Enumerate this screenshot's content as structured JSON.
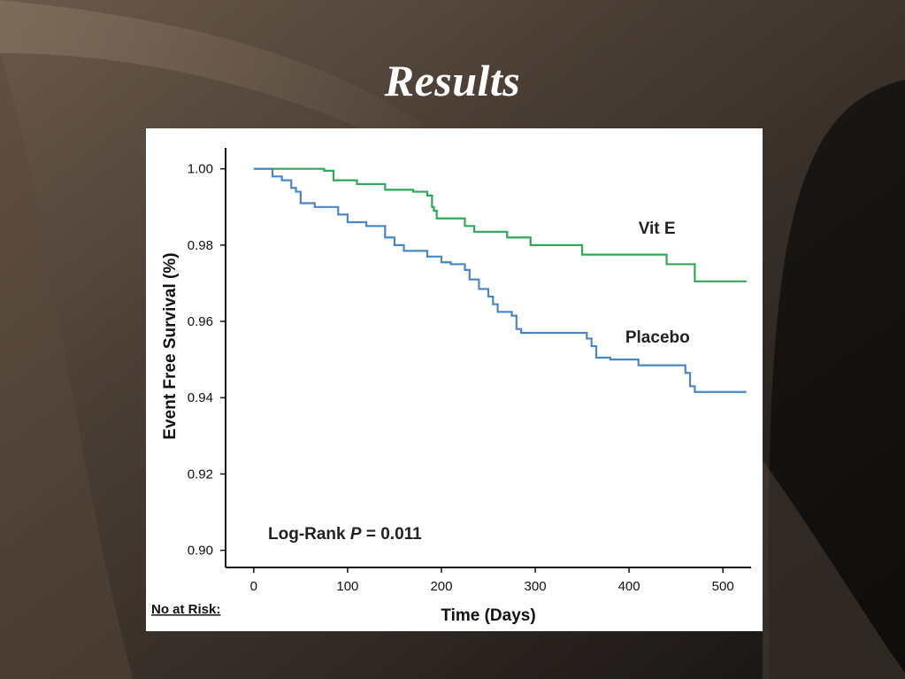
{
  "slide": {
    "title": "Results"
  },
  "colors": {
    "vit_e": "#2fa85a",
    "placebo": "#4a86c5",
    "axis": "#111111"
  },
  "chart_data": {
    "type": "line",
    "subtype": "kaplan-meier step",
    "xlabel": "Time (Days)",
    "ylabel": "Event Free Survival (%)",
    "xlim": [
      -30,
      530
    ],
    "ylim": [
      0.8955,
      1.0055
    ],
    "x_ticks": [
      0,
      100,
      200,
      300,
      400,
      500
    ],
    "x_tick_labels": [
      "0",
      "100",
      "200",
      "300",
      "400",
      "500"
    ],
    "y_ticks": [
      0.9,
      0.92,
      0.94,
      0.96,
      0.98,
      1.0
    ],
    "y_tick_labels": [
      "0.90",
      "0.92",
      "0.94",
      "0.96",
      "0.98",
      "1.00"
    ],
    "grid": false,
    "annotation": {
      "prefix": "Log-Rank ",
      "italic": "P",
      "suffix": " = 0.011"
    },
    "risk_table_label": "No at Risk:",
    "series": [
      {
        "name": "Vit E",
        "color_key": "vit_e",
        "x": [
          0,
          75,
          85,
          110,
          140,
          170,
          185,
          190,
          192,
          195,
          225,
          235,
          270,
          295,
          350,
          440,
          470,
          525
        ],
        "y": [
          1.0,
          0.9995,
          0.997,
          0.996,
          0.9945,
          0.994,
          0.993,
          0.99,
          0.989,
          0.987,
          0.985,
          0.9835,
          0.982,
          0.98,
          0.9775,
          0.975,
          0.9705,
          0.9705
        ]
      },
      {
        "name": "Placebo",
        "color_key": "placebo",
        "x": [
          0,
          20,
          30,
          40,
          45,
          50,
          65,
          90,
          100,
          120,
          140,
          150,
          160,
          185,
          200,
          210,
          225,
          230,
          240,
          250,
          255,
          260,
          275,
          280,
          285,
          355,
          360,
          365,
          370,
          380,
          410,
          420,
          460,
          465,
          470,
          525
        ],
        "y": [
          1.0,
          0.998,
          0.997,
          0.995,
          0.994,
          0.991,
          0.99,
          0.988,
          0.986,
          0.985,
          0.982,
          0.98,
          0.9785,
          0.977,
          0.9755,
          0.975,
          0.9735,
          0.971,
          0.9685,
          0.9665,
          0.9645,
          0.9625,
          0.9615,
          0.958,
          0.957,
          0.9555,
          0.9535,
          0.9505,
          0.9505,
          0.95,
          0.9485,
          0.9485,
          0.9465,
          0.943,
          0.9415,
          0.9415
        ]
      }
    ],
    "series_label_positions": [
      {
        "name": "Vit E",
        "x": 410,
        "y": 0.983
      },
      {
        "name": "Placebo",
        "x": 396,
        "y": 0.9545
      }
    ]
  }
}
